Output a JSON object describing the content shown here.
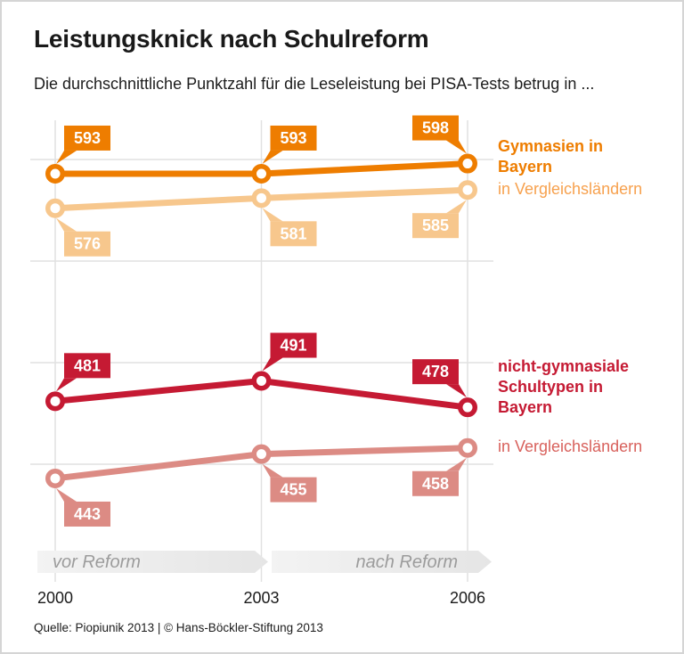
{
  "footer": {
    "source": "Quelle: Piopiunik 2013 | © Hans-Böckler-Stiftung 2013"
  },
  "chart_data": {
    "type": "line",
    "title": "Leistungsknick nach Schulreform",
    "subtitle": "Die durchschnittliche Punktzahl für die Leseleistung bei PISA-Tests betrug in ...",
    "x": [
      2000,
      2003,
      2006
    ],
    "x_labels": [
      "2000",
      "2003",
      "2006"
    ],
    "y_axis_labels_visible": false,
    "y_gridlines": [
      600,
      550,
      500,
      450
    ],
    "ylim": [
      430,
      620
    ],
    "grid": true,
    "legend_position": "right",
    "label_text_color": "#ffffff",
    "series": [
      {
        "name": "Gymnasien in Bayern",
        "values": [
          593,
          593,
          598
        ],
        "color": "#EE7D00",
        "label_side": "above"
      },
      {
        "name": "in Vergleichsländern",
        "values": [
          576,
          581,
          585
        ],
        "color": "#F7C78D",
        "label_side": "below"
      },
      {
        "name": "nicht-gymnasiale Schultypen in Bayern",
        "values": [
          481,
          491,
          478
        ],
        "color": "#C51A33",
        "label_side": "above"
      },
      {
        "name": "in Vergleichsländern",
        "values": [
          443,
          455,
          458
        ],
        "color": "#DC8B84",
        "label_side": "below"
      }
    ],
    "legend": [
      {
        "label": "Gymnasien in Bayern",
        "color": "#EE7D00"
      },
      {
        "label": "in Vergleichsländern",
        "color": "#F7A14E"
      },
      {
        "label": "nicht-gymnasiale Schultypen in Bayern",
        "color": "#C51A33"
      },
      {
        "label": "in Vergleichsländern",
        "color": "#D8615C"
      }
    ],
    "phases": [
      {
        "label": "vor Reform"
      },
      {
        "label": "nach Reform"
      }
    ]
  }
}
